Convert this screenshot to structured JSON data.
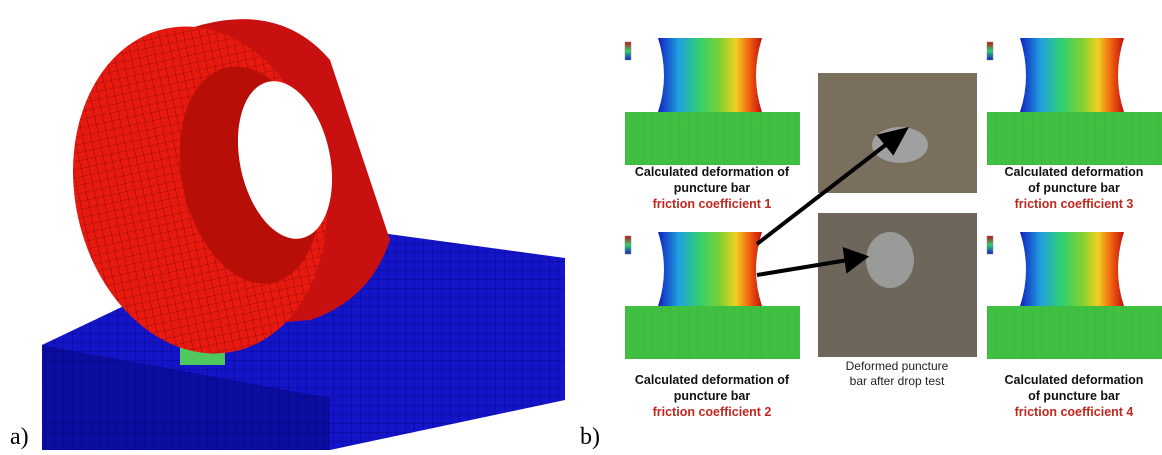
{
  "panel_a": {
    "label": "a)"
  },
  "panel_b": {
    "label": "b)",
    "simulations": [
      {
        "caption": [
          "Calculated deformation of",
          "puncture bar"
        ],
        "friction": "friction coefficient 1"
      },
      {
        "caption": [
          "Calculated deformation of",
          "puncture bar"
        ],
        "friction": "friction coefficient 2"
      },
      {
        "caption": [
          "Calculated deformation",
          "of puncture bar"
        ],
        "friction": "friction coefficient 3"
      },
      {
        "caption": [
          "Calculated deformation",
          "of puncture bar"
        ],
        "friction": "friction coefficient 4"
      }
    ],
    "photo_caption": [
      "Deformed puncture",
      "bar after drop test"
    ]
  }
}
